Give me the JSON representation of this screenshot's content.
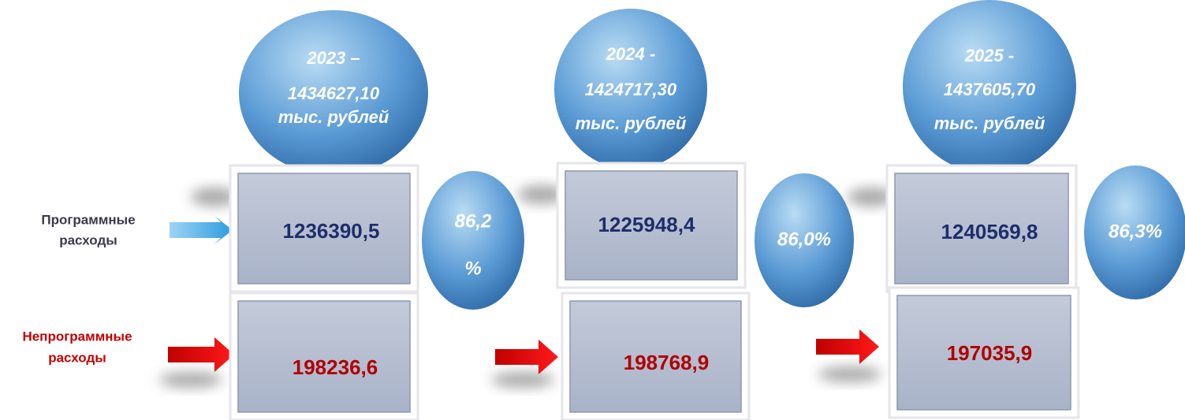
{
  "labels": {
    "program": [
      "Программные",
      "расходы"
    ],
    "nonprogram": [
      "Непрограммные",
      "расходы"
    ]
  },
  "columns": [
    {
      "header": [
        "2023 –",
        "1434627,10",
        "тыс. рублей"
      ],
      "program": "1236390,5",
      "share": [
        "86,2",
        "%"
      ],
      "nonprogram": "198236,6"
    },
    {
      "header": [
        "2024 -",
        "1424717,30",
        "тыс. рублей"
      ],
      "program": "1225948,4",
      "share": [
        "86,0%"
      ],
      "nonprogram": "198768,9"
    },
    {
      "header": [
        "2025 -",
        "1437605,70",
        "тыс. рублей"
      ],
      "program": "1240569,8",
      "share": [
        "86,3%"
      ],
      "nonprogram": "197035,9"
    }
  ]
}
